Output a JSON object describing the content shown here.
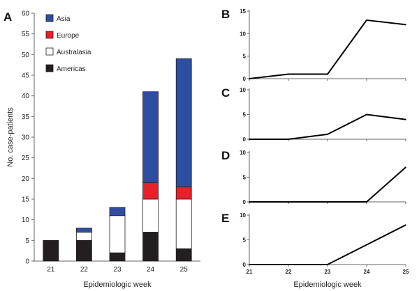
{
  "colors": {
    "Asia": "#2e4ea3",
    "Europe": "#e8202a",
    "Australasia": "#ffffff",
    "Americas": "#231f20",
    "axis": "#666666",
    "line": "#000000"
  },
  "chart_data": [
    {
      "panel": "A",
      "type": "bar",
      "stacked": true,
      "categories": [
        "21",
        "22",
        "23",
        "24",
        "25"
      ],
      "series": [
        {
          "name": "Americas",
          "values": [
            5,
            5,
            2,
            7,
            3
          ]
        },
        {
          "name": "Australasia",
          "values": [
            0,
            2,
            9,
            8,
            12
          ]
        },
        {
          "name": "Europe",
          "values": [
            0,
            0,
            0,
            4,
            3
          ]
        },
        {
          "name": "Asia",
          "values": [
            0,
            1,
            2,
            22,
            31
          ]
        }
      ],
      "legend": [
        "Asia",
        "Europe",
        "Australasia",
        "Americas"
      ],
      "legend_placement": "top-left",
      "xlabel": "Epidemiologic week",
      "ylabel": "No. case-patients",
      "ylim": [
        0,
        60
      ],
      "yticks": [
        "0",
        "5",
        "10",
        "15",
        "20",
        "25",
        "30",
        "35",
        "40",
        "45",
        "50",
        "55",
        "60"
      ],
      "grid": false
    },
    {
      "panel": "B",
      "type": "line",
      "x": [
        21,
        22,
        23,
        24,
        25
      ],
      "values": [
        0,
        1,
        1,
        13,
        12
      ],
      "ylim": [
        0,
        15
      ],
      "yticks": [
        "0",
        "5",
        "10",
        "15"
      ]
    },
    {
      "panel": "C",
      "type": "line",
      "x": [
        21,
        22,
        23,
        24,
        25
      ],
      "values": [
        0,
        0,
        1,
        5,
        4
      ],
      "ylim": [
        0,
        10
      ],
      "yticks": [
        "0",
        "5",
        "10"
      ]
    },
    {
      "panel": "D",
      "type": "line",
      "x": [
        21,
        22,
        23,
        24,
        25
      ],
      "values": [
        0,
        0,
        0,
        0,
        7
      ],
      "ylim": [
        0,
        10
      ],
      "yticks": [
        "0",
        "5",
        "10"
      ]
    },
    {
      "panel": "E",
      "type": "line",
      "x": [
        21,
        22,
        23,
        24,
        25
      ],
      "values": [
        0,
        0,
        0,
        4,
        8
      ],
      "ylim": [
        0,
        10
      ],
      "yticks": [
        "0",
        "5",
        "10"
      ],
      "xticks": [
        "21",
        "22",
        "23",
        "24",
        "25"
      ],
      "xlabel": "Epidemiologic week"
    }
  ]
}
